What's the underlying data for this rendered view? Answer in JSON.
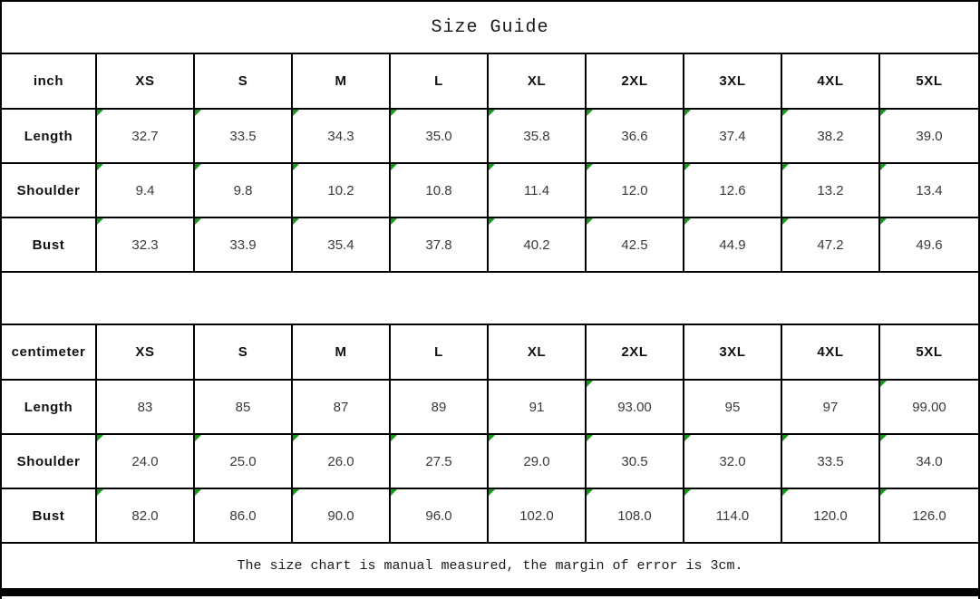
{
  "title": "Size Guide",
  "footer_note": "The size chart is manual measured, the margin of error is 3cm.",
  "colors": {
    "marker_green": "#149b14",
    "border_black": "#000000",
    "bottom_bar": "#000000",
    "data_text": "#3a3a3a"
  },
  "sizes": [
    "XS",
    "S",
    "M",
    "L",
    "XL",
    "2XL",
    "3XL",
    "4XL",
    "5XL"
  ],
  "tables": [
    {
      "unit": "inch",
      "rows": [
        {
          "label": "Length",
          "values": [
            "32.7",
            "33.5",
            "34.3",
            "35.0",
            "35.8",
            "36.6",
            "37.4",
            "38.2",
            "39.0"
          ],
          "flags": [
            1,
            1,
            1,
            1,
            1,
            1,
            1,
            1,
            1
          ]
        },
        {
          "label": "Shoulder",
          "values": [
            "9.4",
            "9.8",
            "10.2",
            "10.8",
            "11.4",
            "12.0",
            "12.6",
            "13.2",
            "13.4"
          ],
          "flags": [
            1,
            1,
            1,
            1,
            1,
            1,
            1,
            1,
            1
          ]
        },
        {
          "label": "Bust",
          "values": [
            "32.3",
            "33.9",
            "35.4",
            "37.8",
            "40.2",
            "42.5",
            "44.9",
            "47.2",
            "49.6"
          ],
          "flags": [
            1,
            1,
            1,
            1,
            1,
            1,
            1,
            1,
            1
          ]
        }
      ]
    },
    {
      "unit": "centimeter",
      "rows": [
        {
          "label": "Length",
          "values": [
            "83",
            "85",
            "87",
            "89",
            "91",
            "93.00",
            "95",
            "97",
            "99.00"
          ],
          "flags": [
            0,
            0,
            0,
            0,
            0,
            1,
            0,
            0,
            1
          ]
        },
        {
          "label": "Shoulder",
          "values": [
            "24.0",
            "25.0",
            "26.0",
            "27.5",
            "29.0",
            "30.5",
            "32.0",
            "33.5",
            "34.0"
          ],
          "flags": [
            1,
            1,
            1,
            1,
            1,
            1,
            1,
            1,
            1
          ]
        },
        {
          "label": "Bust",
          "values": [
            "82.0",
            "86.0",
            "90.0",
            "96.0",
            "102.0",
            "108.0",
            "114.0",
            "120.0",
            "126.0"
          ],
          "flags": [
            1,
            1,
            1,
            1,
            1,
            1,
            1,
            1,
            1
          ]
        }
      ]
    }
  ]
}
